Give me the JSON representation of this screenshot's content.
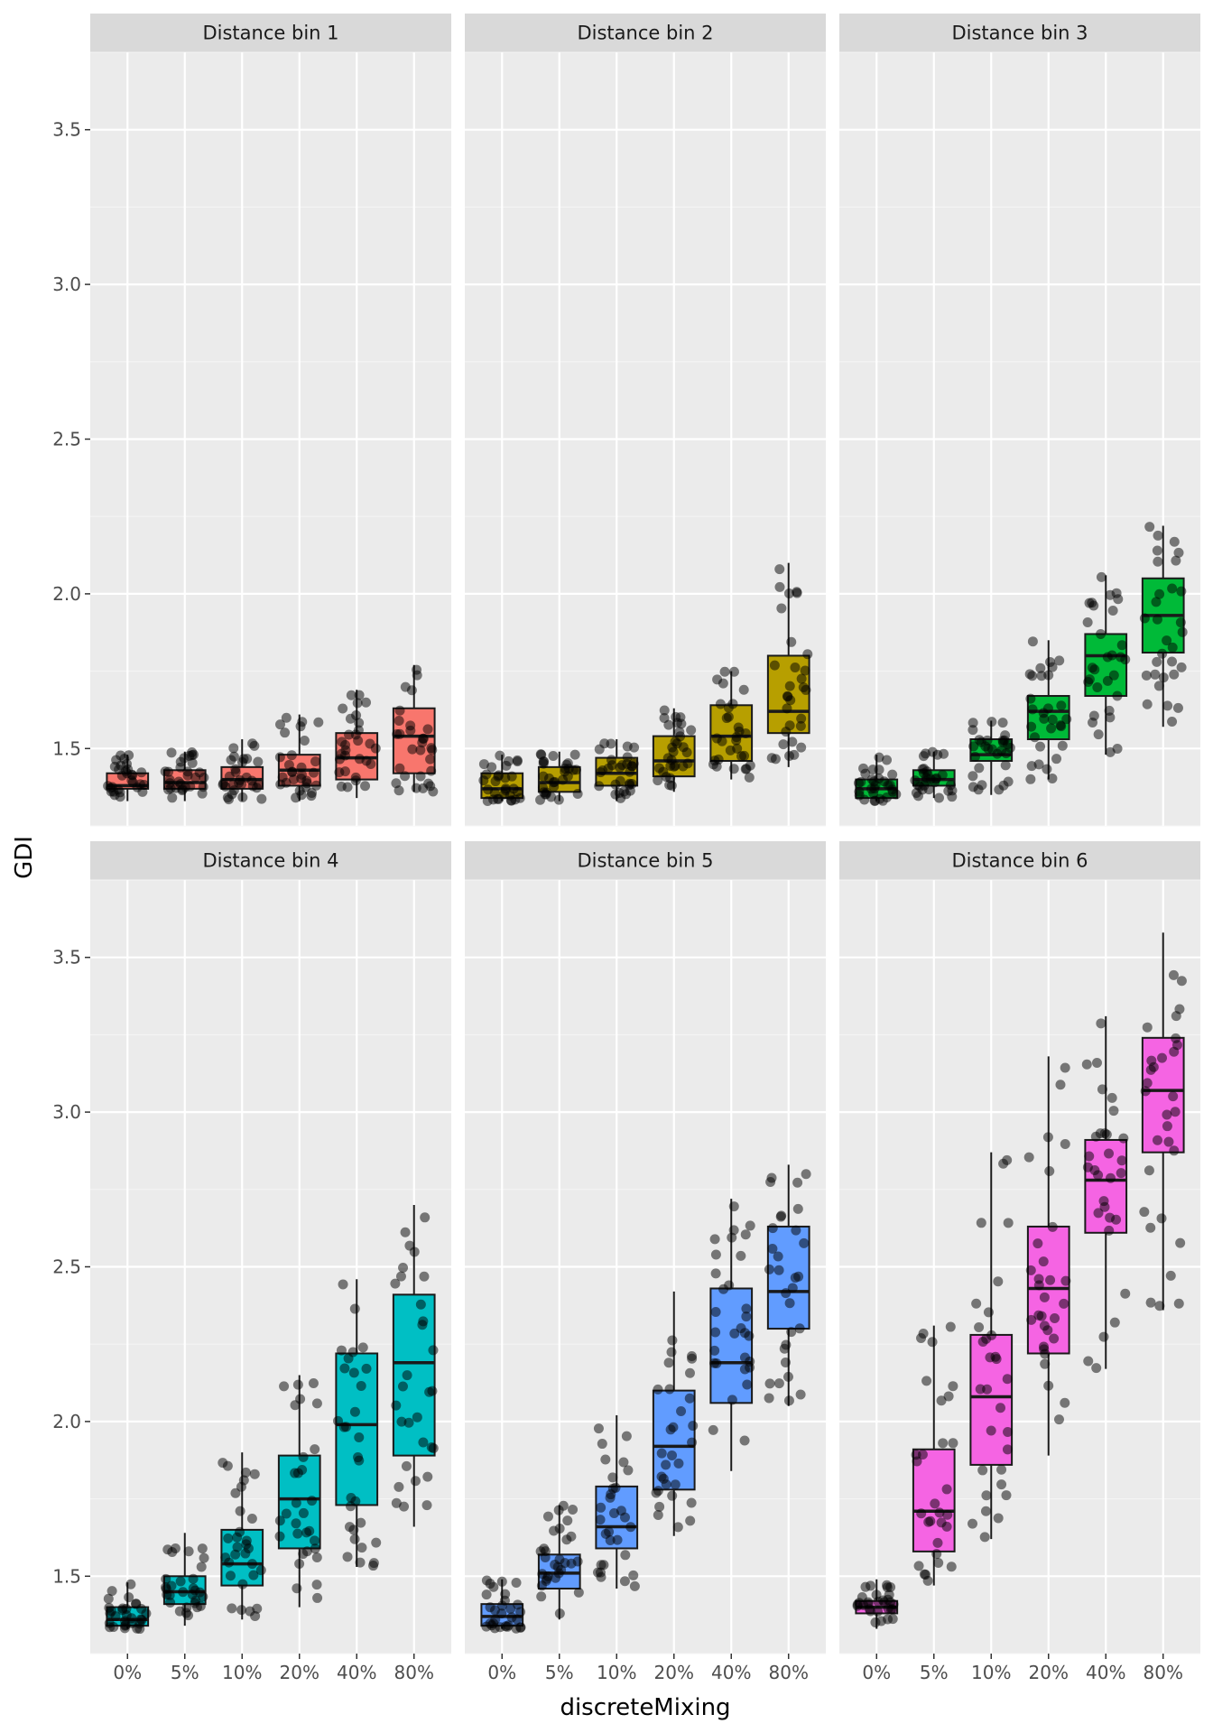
{
  "chart_data": {
    "type": "box",
    "xlabel": "discreteMixing",
    "ylabel": "GDI",
    "ylim": [
      1.25,
      3.75
    ],
    "y_ticks": [
      "1.5",
      "2.0",
      "2.5",
      "3.0",
      "3.5"
    ],
    "categories": [
      "0%",
      "5%",
      "10%",
      "20%",
      "40%",
      "80%"
    ],
    "grid": true,
    "jitter_points": true,
    "panels": [
      {
        "title": "Distance bin 1",
        "color": "#F8766D",
        "boxes": [
          {
            "q1": 1.37,
            "median": 1.38,
            "q3": 1.42,
            "min": 1.33,
            "max": 1.48
          },
          {
            "q1": 1.37,
            "median": 1.39,
            "q3": 1.43,
            "min": 1.33,
            "max": 1.49
          },
          {
            "q1": 1.37,
            "median": 1.4,
            "q3": 1.44,
            "min": 1.33,
            "max": 1.53
          },
          {
            "q1": 1.38,
            "median": 1.43,
            "q3": 1.48,
            "min": 1.33,
            "max": 1.61
          },
          {
            "q1": 1.4,
            "median": 1.47,
            "q3": 1.55,
            "min": 1.34,
            "max": 1.69
          },
          {
            "q1": 1.42,
            "median": 1.54,
            "q3": 1.63,
            "min": 1.36,
            "max": 1.77
          }
        ]
      },
      {
        "title": "Distance bin 2",
        "color": "#B79F00",
        "boxes": [
          {
            "q1": 1.34,
            "median": 1.37,
            "q3": 1.42,
            "min": 1.33,
            "max": 1.48
          },
          {
            "q1": 1.36,
            "median": 1.39,
            "q3": 1.44,
            "min": 1.33,
            "max": 1.49
          },
          {
            "q1": 1.38,
            "median": 1.42,
            "q3": 1.47,
            "min": 1.33,
            "max": 1.53
          },
          {
            "q1": 1.41,
            "median": 1.46,
            "q3": 1.54,
            "min": 1.36,
            "max": 1.63
          },
          {
            "q1": 1.46,
            "median": 1.54,
            "q3": 1.64,
            "min": 1.4,
            "max": 1.75
          },
          {
            "q1": 1.55,
            "median": 1.62,
            "q3": 1.8,
            "min": 1.44,
            "max": 2.1
          }
        ]
      },
      {
        "title": "Distance bin 3",
        "color": "#00BA38",
        "boxes": [
          {
            "q1": 1.34,
            "median": 1.37,
            "q3": 1.4,
            "min": 1.33,
            "max": 1.48
          },
          {
            "q1": 1.38,
            "median": 1.4,
            "q3": 1.43,
            "min": 1.34,
            "max": 1.49
          },
          {
            "q1": 1.46,
            "median": 1.48,
            "q3": 1.53,
            "min": 1.35,
            "max": 1.59
          },
          {
            "q1": 1.53,
            "median": 1.62,
            "q3": 1.67,
            "min": 1.4,
            "max": 1.85
          },
          {
            "q1": 1.67,
            "median": 1.8,
            "q3": 1.87,
            "min": 1.48,
            "max": 2.06
          },
          {
            "q1": 1.81,
            "median": 1.93,
            "q3": 2.05,
            "min": 1.57,
            "max": 2.22
          }
        ]
      },
      {
        "title": "Distance bin 4",
        "color": "#00BFC4",
        "boxes": [
          {
            "q1": 1.34,
            "median": 1.36,
            "q3": 1.4,
            "min": 1.33,
            "max": 1.48
          },
          {
            "q1": 1.41,
            "median": 1.45,
            "q3": 1.5,
            "min": 1.34,
            "max": 1.64
          },
          {
            "q1": 1.47,
            "median": 1.54,
            "q3": 1.65,
            "min": 1.36,
            "max": 1.9
          },
          {
            "q1": 1.59,
            "median": 1.75,
            "q3": 1.89,
            "min": 1.4,
            "max": 2.15
          },
          {
            "q1": 1.73,
            "median": 1.99,
            "q3": 2.22,
            "min": 1.53,
            "max": 2.46
          },
          {
            "q1": 1.89,
            "median": 2.19,
            "q3": 2.41,
            "min": 1.66,
            "max": 2.7
          }
        ]
      },
      {
        "title": "Distance bin 5",
        "color": "#619CFF",
        "boxes": [
          {
            "q1": 1.34,
            "median": 1.37,
            "q3": 1.41,
            "min": 1.33,
            "max": 1.49
          },
          {
            "q1": 1.46,
            "median": 1.51,
            "q3": 1.57,
            "min": 1.36,
            "max": 1.73
          },
          {
            "q1": 1.59,
            "median": 1.66,
            "q3": 1.79,
            "min": 1.46,
            "max": 2.02
          },
          {
            "q1": 1.78,
            "median": 1.92,
            "q3": 2.1,
            "min": 1.63,
            "max": 2.42
          },
          {
            "q1": 2.06,
            "median": 2.19,
            "q3": 2.43,
            "min": 1.84,
            "max": 2.72
          },
          {
            "q1": 2.3,
            "median": 2.42,
            "q3": 2.63,
            "min": 2.05,
            "max": 2.83
          }
        ]
      },
      {
        "title": "Distance bin 6",
        "color": "#F564E3",
        "boxes": [
          {
            "q1": 1.38,
            "median": 1.4,
            "q3": 1.42,
            "min": 1.33,
            "max": 1.49
          },
          {
            "q1": 1.58,
            "median": 1.71,
            "q3": 1.91,
            "min": 1.47,
            "max": 2.31
          },
          {
            "q1": 1.86,
            "median": 2.08,
            "q3": 2.28,
            "min": 1.62,
            "max": 2.87
          },
          {
            "q1": 2.22,
            "median": 2.43,
            "q3": 2.63,
            "min": 1.89,
            "max": 3.18
          },
          {
            "q1": 2.61,
            "median": 2.78,
            "q3": 2.91,
            "min": 2.17,
            "max": 3.31
          },
          {
            "q1": 2.87,
            "median": 3.07,
            "q3": 3.24,
            "min": 2.36,
            "max": 3.58
          }
        ]
      }
    ]
  }
}
